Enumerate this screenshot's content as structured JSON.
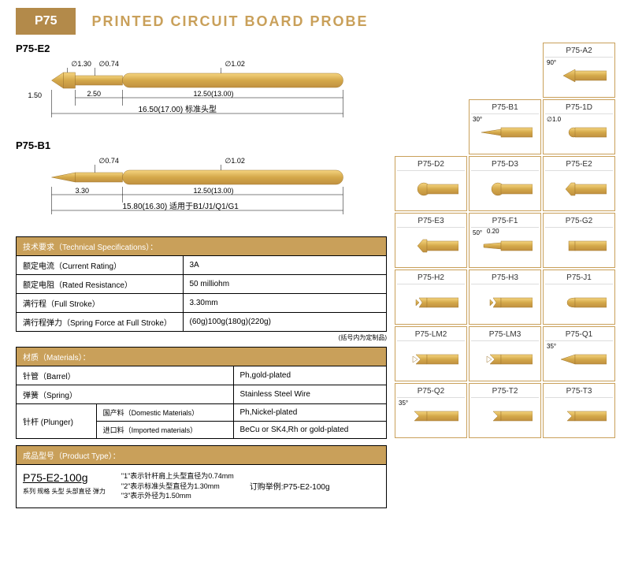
{
  "header": {
    "badge": "P75",
    "title": "PRINTED CIRCUIT BOARD  PROBE"
  },
  "colors": {
    "brand": "#c9a05a",
    "gold_light": "#f5d580",
    "gold_mid": "#d4a84a",
    "gold_dark": "#c09040",
    "border": "#a07830"
  },
  "diagrams": [
    {
      "label": "P75-E2",
      "dims": {
        "tip_dia": "∅1.30",
        "shaft_dia": "∅0.74",
        "barrel_dia": "∅1.02",
        "tip_len": "1.50",
        "shaft_len": "2.50",
        "barrel_len": "12.50(13.00)",
        "total": "16.50(17.00) 标准头型"
      }
    },
    {
      "label": "P75-B1",
      "dims": {
        "shaft_dia": "∅0.74",
        "barrel_dia": "∅1.02",
        "shaft_len": "3.30",
        "barrel_len": "12.50(13.00)",
        "total": "15.80(16.30) 适用于B1/J1/Q1/G1"
      }
    }
  ],
  "specs": {
    "header": "技术要求（Technical Specifications）：",
    "rows": [
      {
        "label": "额定电流（Current Rating）",
        "value": "3A"
      },
      {
        "label": "额定电阻（Rated Resistance）",
        "value": "50 milliohm"
      },
      {
        "label": "满行程（Full Stroke）",
        "value": "3.30mm"
      },
      {
        "label": "满行程弹力（Spring Force at Full Stroke）",
        "value": "(60g)100g(180g)(220g)"
      }
    ],
    "note": "(括号内为定制品)"
  },
  "materials": {
    "header": "材质（Materials）：",
    "rows": [
      {
        "label": "针管（Barrel）",
        "value": "Ph,gold-plated",
        "span": 2
      },
      {
        "label": "弹簧（Spring）",
        "value": "Stainless Steel Wire",
        "span": 2
      },
      {
        "label": "针杆 (Plunger)",
        "sub1_label": "国产料（Domestic Materials）",
        "sub1_value": "Ph,Nickel-plated",
        "sub2_label": "进口料（Imported materials）",
        "sub2_value": "BeCu or SK4,Rh or gold-plated"
      }
    ]
  },
  "product": {
    "header": "成品型号（Product Type）：",
    "code": "P75-E2-100g",
    "sub_labels": "系列 规格 头型 头部直径  弹力",
    "notes": [
      "\"1\"表示针杆肩上头型直径为0.74mm",
      "\"2\"表示标准头型直径为1.30mm",
      "\"3\"表示外径为1.50mm"
    ],
    "order_example": "订购举例:P75-E2-100g"
  },
  "tips": [
    {
      "id": "",
      "empty": true
    },
    {
      "id": "",
      "empty": true
    },
    {
      "id": "P75-A2",
      "shape": "cone90",
      "annot": "90°"
    },
    {
      "id": "",
      "empty": true
    },
    {
      "id": "P75-B1",
      "shape": "needle",
      "annot": "30°"
    },
    {
      "id": "P75-1D",
      "shape": "dome_small",
      "annot": "∅1.0"
    },
    {
      "id": "P75-D2",
      "shape": "dome"
    },
    {
      "id": "P75-D3",
      "shape": "dome"
    },
    {
      "id": "P75-E2",
      "shape": "chisel"
    },
    {
      "id": "P75-E3",
      "shape": "chisel"
    },
    {
      "id": "P75-F1",
      "shape": "needle_flat",
      "annot": "50°",
      "annot2": "0.20"
    },
    {
      "id": "P75-G2",
      "shape": "flat"
    },
    {
      "id": "P75-H2",
      "shape": "serrated"
    },
    {
      "id": "P75-H3",
      "shape": "serrated"
    },
    {
      "id": "P75-J1",
      "shape": "radius"
    },
    {
      "id": "P75-LM2",
      "shape": "crown"
    },
    {
      "id": "P75-LM3",
      "shape": "crown"
    },
    {
      "id": "P75-Q1",
      "shape": "cone35",
      "annot": "35°"
    },
    {
      "id": "P75-Q2",
      "shape": "crown35",
      "annot": "35°"
    },
    {
      "id": "P75-T2",
      "shape": "cone_inv"
    },
    {
      "id": "P75-T3",
      "shape": "cone_inv"
    }
  ]
}
